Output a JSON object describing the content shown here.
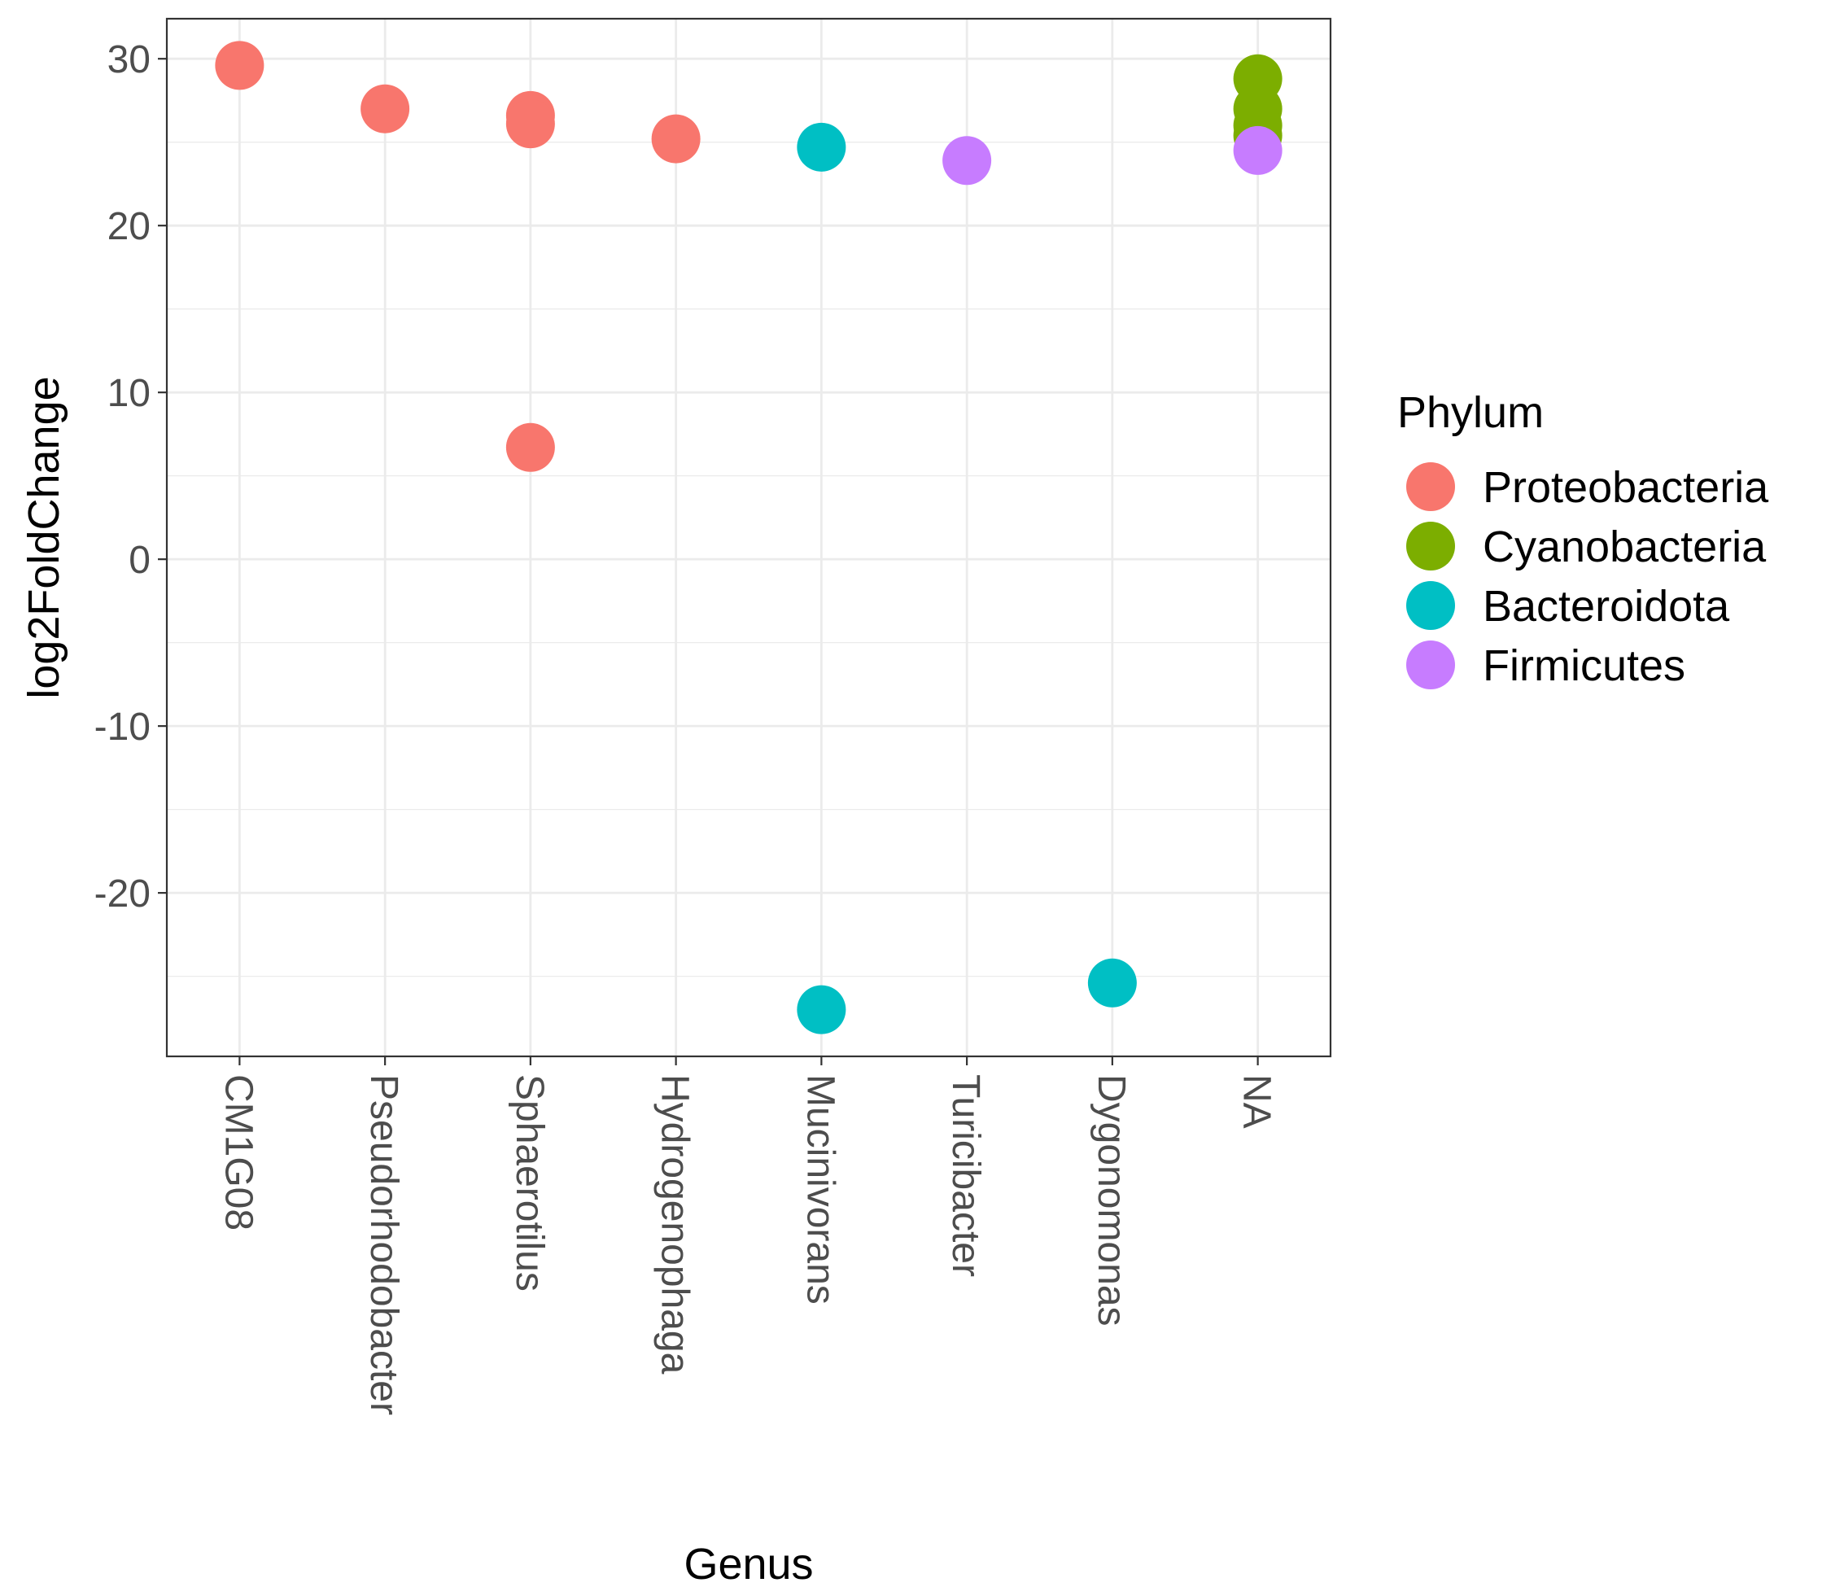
{
  "chart_data": {
    "type": "scatter",
    "xlabel": "Genus",
    "ylabel": "log2FoldChange",
    "categories": [
      "CM1G08",
      "Pseudorhodobacter",
      "Sphaerotilus",
      "Hydrogenophaga",
      "Mucinivorans",
      "Turicibacter",
      "Dygonomonas",
      "NA"
    ],
    "ylim": [
      -29.8,
      32.4
    ],
    "yticks": [
      30,
      20,
      10,
      0,
      -10,
      -20
    ],
    "ytick_labels": [
      "30",
      "20",
      "10",
      "0",
      "-10",
      "-20"
    ],
    "grid": true,
    "legend": {
      "title": "Phylum",
      "placement": "right",
      "entries": [
        {
          "name": "Proteobacteria",
          "color": "#F8766D"
        },
        {
          "name": "Cyanobacteria",
          "color": "#7CAE00"
        },
        {
          "name": "Bacteroidota",
          "color": "#00BFC4"
        },
        {
          "name": "Firmicutes",
          "color": "#C77CFF"
        }
      ]
    },
    "series": [
      {
        "name": "Proteobacteria",
        "color": "#F8766D",
        "points": [
          {
            "x": "CM1G08",
            "y": 29.6
          },
          {
            "x": "Pseudorhodobacter",
            "y": 27.0
          },
          {
            "x": "Sphaerotilus",
            "y": 26.6
          },
          {
            "x": "Sphaerotilus",
            "y": 26.1
          },
          {
            "x": "Sphaerotilus",
            "y": 6.7
          },
          {
            "x": "Hydrogenophaga",
            "y": 25.2
          }
        ]
      },
      {
        "name": "Cyanobacteria",
        "color": "#7CAE00",
        "points": [
          {
            "x": "NA",
            "y": 28.8
          },
          {
            "x": "NA",
            "y": 27.0
          },
          {
            "x": "NA",
            "y": 26.0
          },
          {
            "x": "NA",
            "y": 25.4
          }
        ]
      },
      {
        "name": "Bacteroidota",
        "color": "#00BFC4",
        "points": [
          {
            "x": "Mucinivorans",
            "y": 24.7
          },
          {
            "x": "Mucinivorans",
            "y": -27.0
          },
          {
            "x": "Dygonomonas",
            "y": -25.4
          }
        ]
      },
      {
        "name": "Firmicutes",
        "color": "#C77CFF",
        "points": [
          {
            "x": "Turicibacter",
            "y": 23.9
          },
          {
            "x": "NA",
            "y": 24.5
          }
        ]
      }
    ]
  }
}
